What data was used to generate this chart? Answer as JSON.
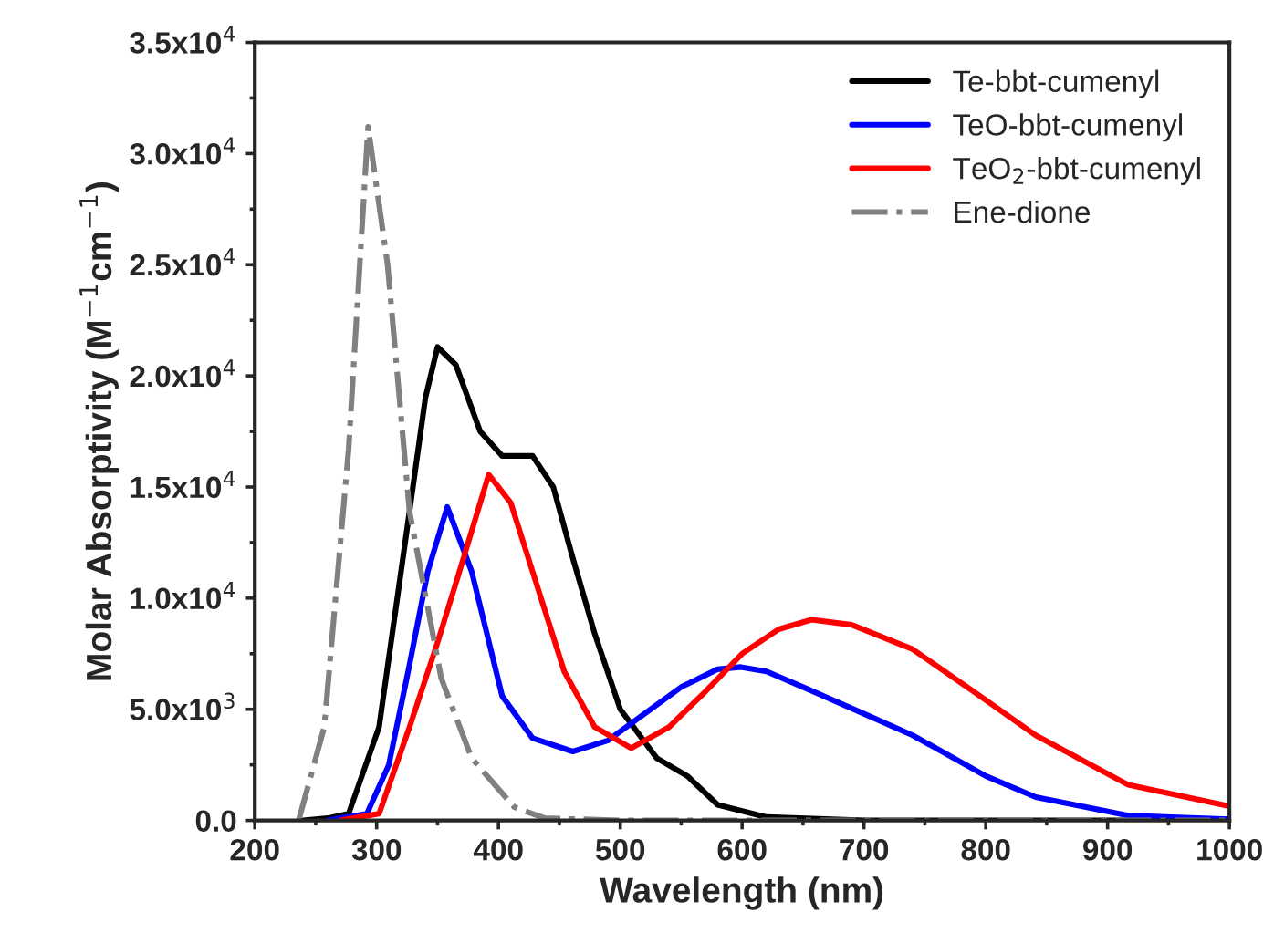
{
  "chart_data": {
    "type": "line",
    "xlabel": "Wavelength (nm)",
    "ylabel": "Molar Absorptivity (M$^{−1}$cm$^{−1}$)",
    "xlim": [
      200,
      1000
    ],
    "xticks": [
      200,
      300,
      400,
      500,
      600,
      700,
      800,
      900,
      1000
    ],
    "ylim": [
      0,
      35000
    ],
    "yticks": [
      {
        "value": 0,
        "label": "0.0"
      },
      {
        "value": 5000,
        "label": "5.0x10$^{3}$"
      },
      {
        "value": 10000,
        "label": "1.0x10$^{4}$"
      },
      {
        "value": 15000,
        "label": "1.5x10$^{4}$"
      },
      {
        "value": 20000,
        "label": "2.0x10$^{4}$"
      },
      {
        "value": 25000,
        "label": "2.5x10$^{4}$"
      },
      {
        "value": 30000,
        "label": "3.0x10$^{4}$"
      },
      {
        "value": 35000,
        "label": "3.5x10$^{4}$"
      }
    ],
    "legend": "top right",
    "grid": false,
    "marker": "none",
    "series": [
      {
        "name": "Te-bbt-cumenyl",
        "color": "#000000",
        "line_style": "solid",
        "x": [
          240,
          260,
          277,
          302,
          327,
          340,
          350,
          365,
          385,
          403,
          428,
          445,
          460,
          479,
          500,
          530,
          555,
          580,
          620,
          700,
          1000
        ],
        "values": [
          0,
          100,
          300,
          4200,
          13900,
          19000,
          21300,
          20500,
          17500,
          16400,
          16400,
          15000,
          12000,
          8400,
          5000,
          2800,
          2000,
          700,
          150,
          0,
          0
        ]
      },
      {
        "name": "TeO-bbt-cumenyl",
        "color": "#0000ff",
        "line_style": "solid",
        "x": [
          260,
          292,
          310,
          327,
          342,
          358,
          378,
          403,
          428,
          461,
          490,
          520,
          550,
          580,
          599,
          620,
          650,
          700,
          740,
          800,
          841,
          917,
          1000
        ],
        "values": [
          0,
          300,
          2500,
          7000,
          11200,
          14100,
          11200,
          5600,
          3700,
          3100,
          3600,
          4800,
          6000,
          6800,
          6900,
          6700,
          6000,
          4800,
          3830,
          2000,
          1050,
          220,
          50
        ]
      },
      {
        "name": "TeO$_{2}$-bbt-cumenyl",
        "color": "#ff0000",
        "line_style": "solid",
        "x": [
          270,
          302,
          327,
          350,
          368,
          392,
          410,
          428,
          454,
          479,
          509,
          540,
          570,
          600,
          630,
          657,
          690,
          740,
          790,
          841,
          917,
          1000
        ],
        "values": [
          0,
          300,
          4200,
          8000,
          11200,
          15560,
          14300,
          11200,
          6700,
          4200,
          3250,
          4200,
          5800,
          7500,
          8600,
          9030,
          8800,
          7700,
          5800,
          3830,
          1600,
          640
        ]
      },
      {
        "name": "Ene-dione",
        "color": "#808080",
        "line_style": "dashdot",
        "x": [
          236,
          257,
          277,
          293,
          309,
          327,
          353,
          378,
          413,
          438,
          500,
          1000
        ],
        "values": [
          0,
          4200,
          16700,
          31200,
          25000,
          13900,
          6400,
          2800,
          600,
          100,
          0,
          0
        ]
      }
    ]
  }
}
